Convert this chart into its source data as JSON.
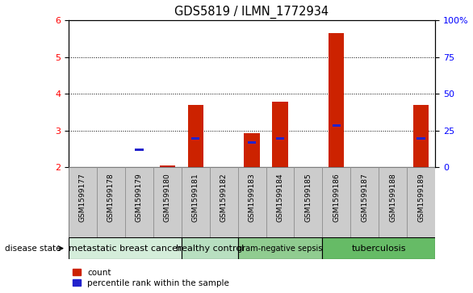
{
  "title": "GDS5819 / ILMN_1772934",
  "samples": [
    "GSM1599177",
    "GSM1599178",
    "GSM1599179",
    "GSM1599180",
    "GSM1599181",
    "GSM1599182",
    "GSM1599183",
    "GSM1599184",
    "GSM1599185",
    "GSM1599186",
    "GSM1599187",
    "GSM1599188",
    "GSM1599189"
  ],
  "counts": [
    2.0,
    2.0,
    2.0,
    2.05,
    3.7,
    2.0,
    2.93,
    3.78,
    2.0,
    5.65,
    2.0,
    2.0,
    3.7
  ],
  "percentile_ranks": [
    null,
    null,
    2.47,
    null,
    2.78,
    null,
    2.67,
    2.78,
    null,
    3.13,
    null,
    null,
    2.78
  ],
  "disease_groups": [
    {
      "label": "metastatic breast cancer",
      "start": 0,
      "end": 3,
      "color": "#d4edda",
      "fontsize": 8
    },
    {
      "label": "healthy control",
      "start": 4,
      "end": 5,
      "color": "#b8dfc0",
      "fontsize": 8
    },
    {
      "label": "gram-negative sepsis",
      "start": 6,
      "end": 8,
      "color": "#90cc90",
      "fontsize": 7
    },
    {
      "label": "tuberculosis",
      "start": 9,
      "end": 12,
      "color": "#66bb66",
      "fontsize": 8
    }
  ],
  "ylim": [
    2.0,
    6.0
  ],
  "yticks_left": [
    2,
    3,
    4,
    5,
    6
  ],
  "yticks_right": [
    0,
    25,
    50,
    75,
    100
  ],
  "ytick_right_labels": [
    "0",
    "25",
    "50",
    "75",
    "100%"
  ],
  "bar_color": "#cc2200",
  "dot_color": "#2222cc",
  "count_label": "count",
  "percentile_label": "percentile rank within the sample",
  "disease_state_label": "disease state"
}
